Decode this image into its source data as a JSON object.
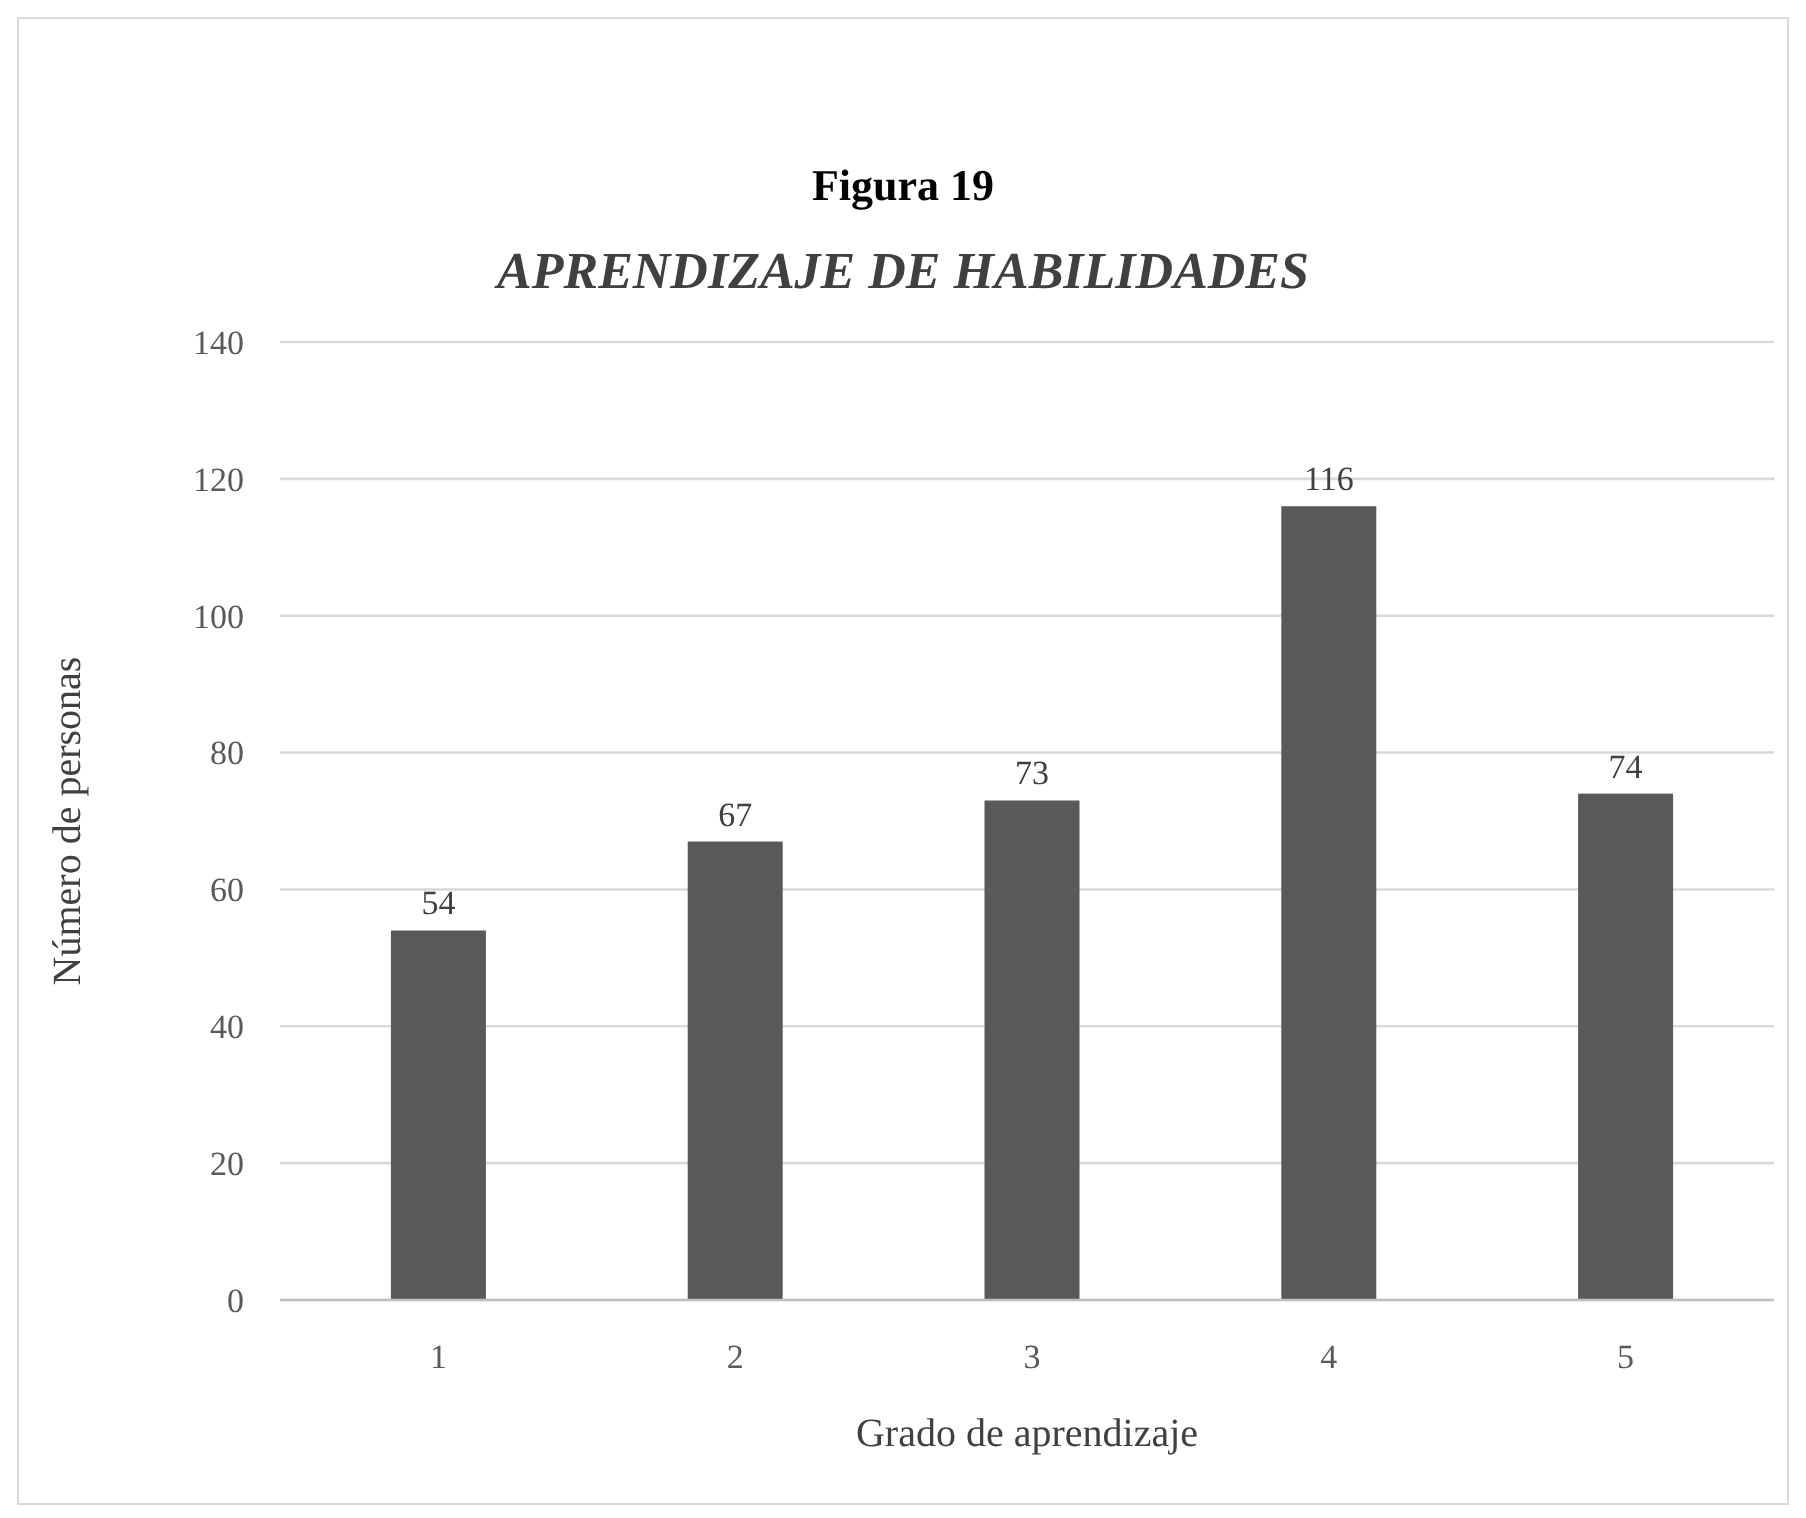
{
  "chart_data": {
    "type": "bar",
    "title": "Figura 19",
    "subtitle": "APRENDIZAJE DE HABILIDADES",
    "xlabel": "Grado de aprendizaje",
    "ylabel": "Número de personas",
    "categories": [
      "1",
      "2",
      "3",
      "4",
      "5"
    ],
    "values": [
      54,
      67,
      73,
      116,
      74
    ],
    "color": "#595959",
    "ylim": [
      0,
      140
    ],
    "yticks": [
      0,
      20,
      40,
      60,
      80,
      100,
      120,
      140
    ],
    "grid": "y",
    "data_labels": true
  }
}
